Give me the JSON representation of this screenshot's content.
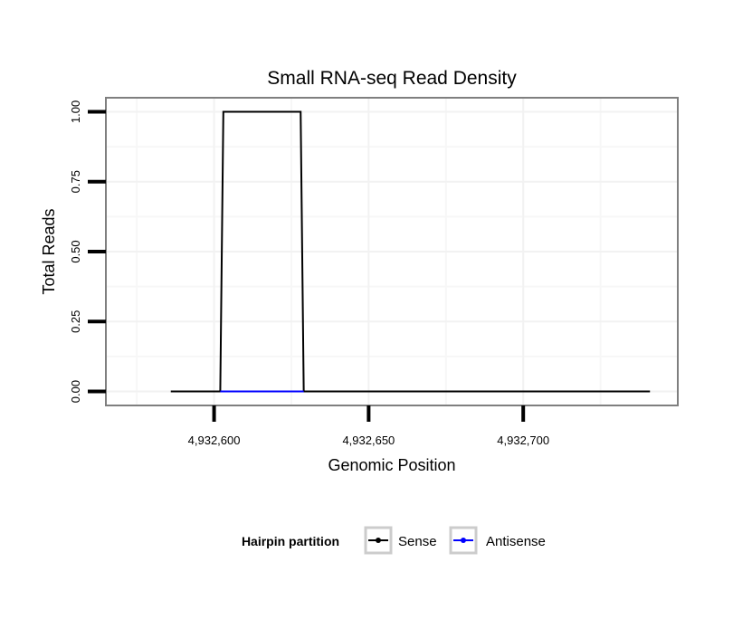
{
  "chart_data": {
    "type": "line",
    "title": "Small RNA-seq Read Density",
    "xlabel": "Genomic Position",
    "ylabel": "Total Reads",
    "xlim": [
      4932565,
      4932750
    ],
    "ylim": [
      -0.05,
      1.05
    ],
    "x_ticks": [
      4932600,
      4932650,
      4932700
    ],
    "x_tick_labels": [
      "4,932,600",
      "4,932,650",
      "4,932,700"
    ],
    "y_ticks": [
      0,
      0.25,
      0.5,
      0.75,
      1.0
    ],
    "y_tick_labels": [
      "0.00",
      "0.25",
      "0.50",
      "0.75",
      "1.00"
    ],
    "grid": true,
    "legend": {
      "title": "Hairpin partition",
      "placement": "bottom",
      "entries": [
        "Sense",
        "Antisense"
      ]
    },
    "series": [
      {
        "name": "Sense",
        "color": "#000000",
        "x": [
          4932586,
          4932602,
          4932603,
          4932628,
          4932629,
          4932741
        ],
        "y": [
          0,
          0,
          1,
          1,
          0,
          0
        ]
      },
      {
        "name": "Antisense",
        "color": "#0000ff",
        "x": [
          4932602,
          4932629
        ],
        "y": [
          0,
          0
        ]
      }
    ]
  }
}
